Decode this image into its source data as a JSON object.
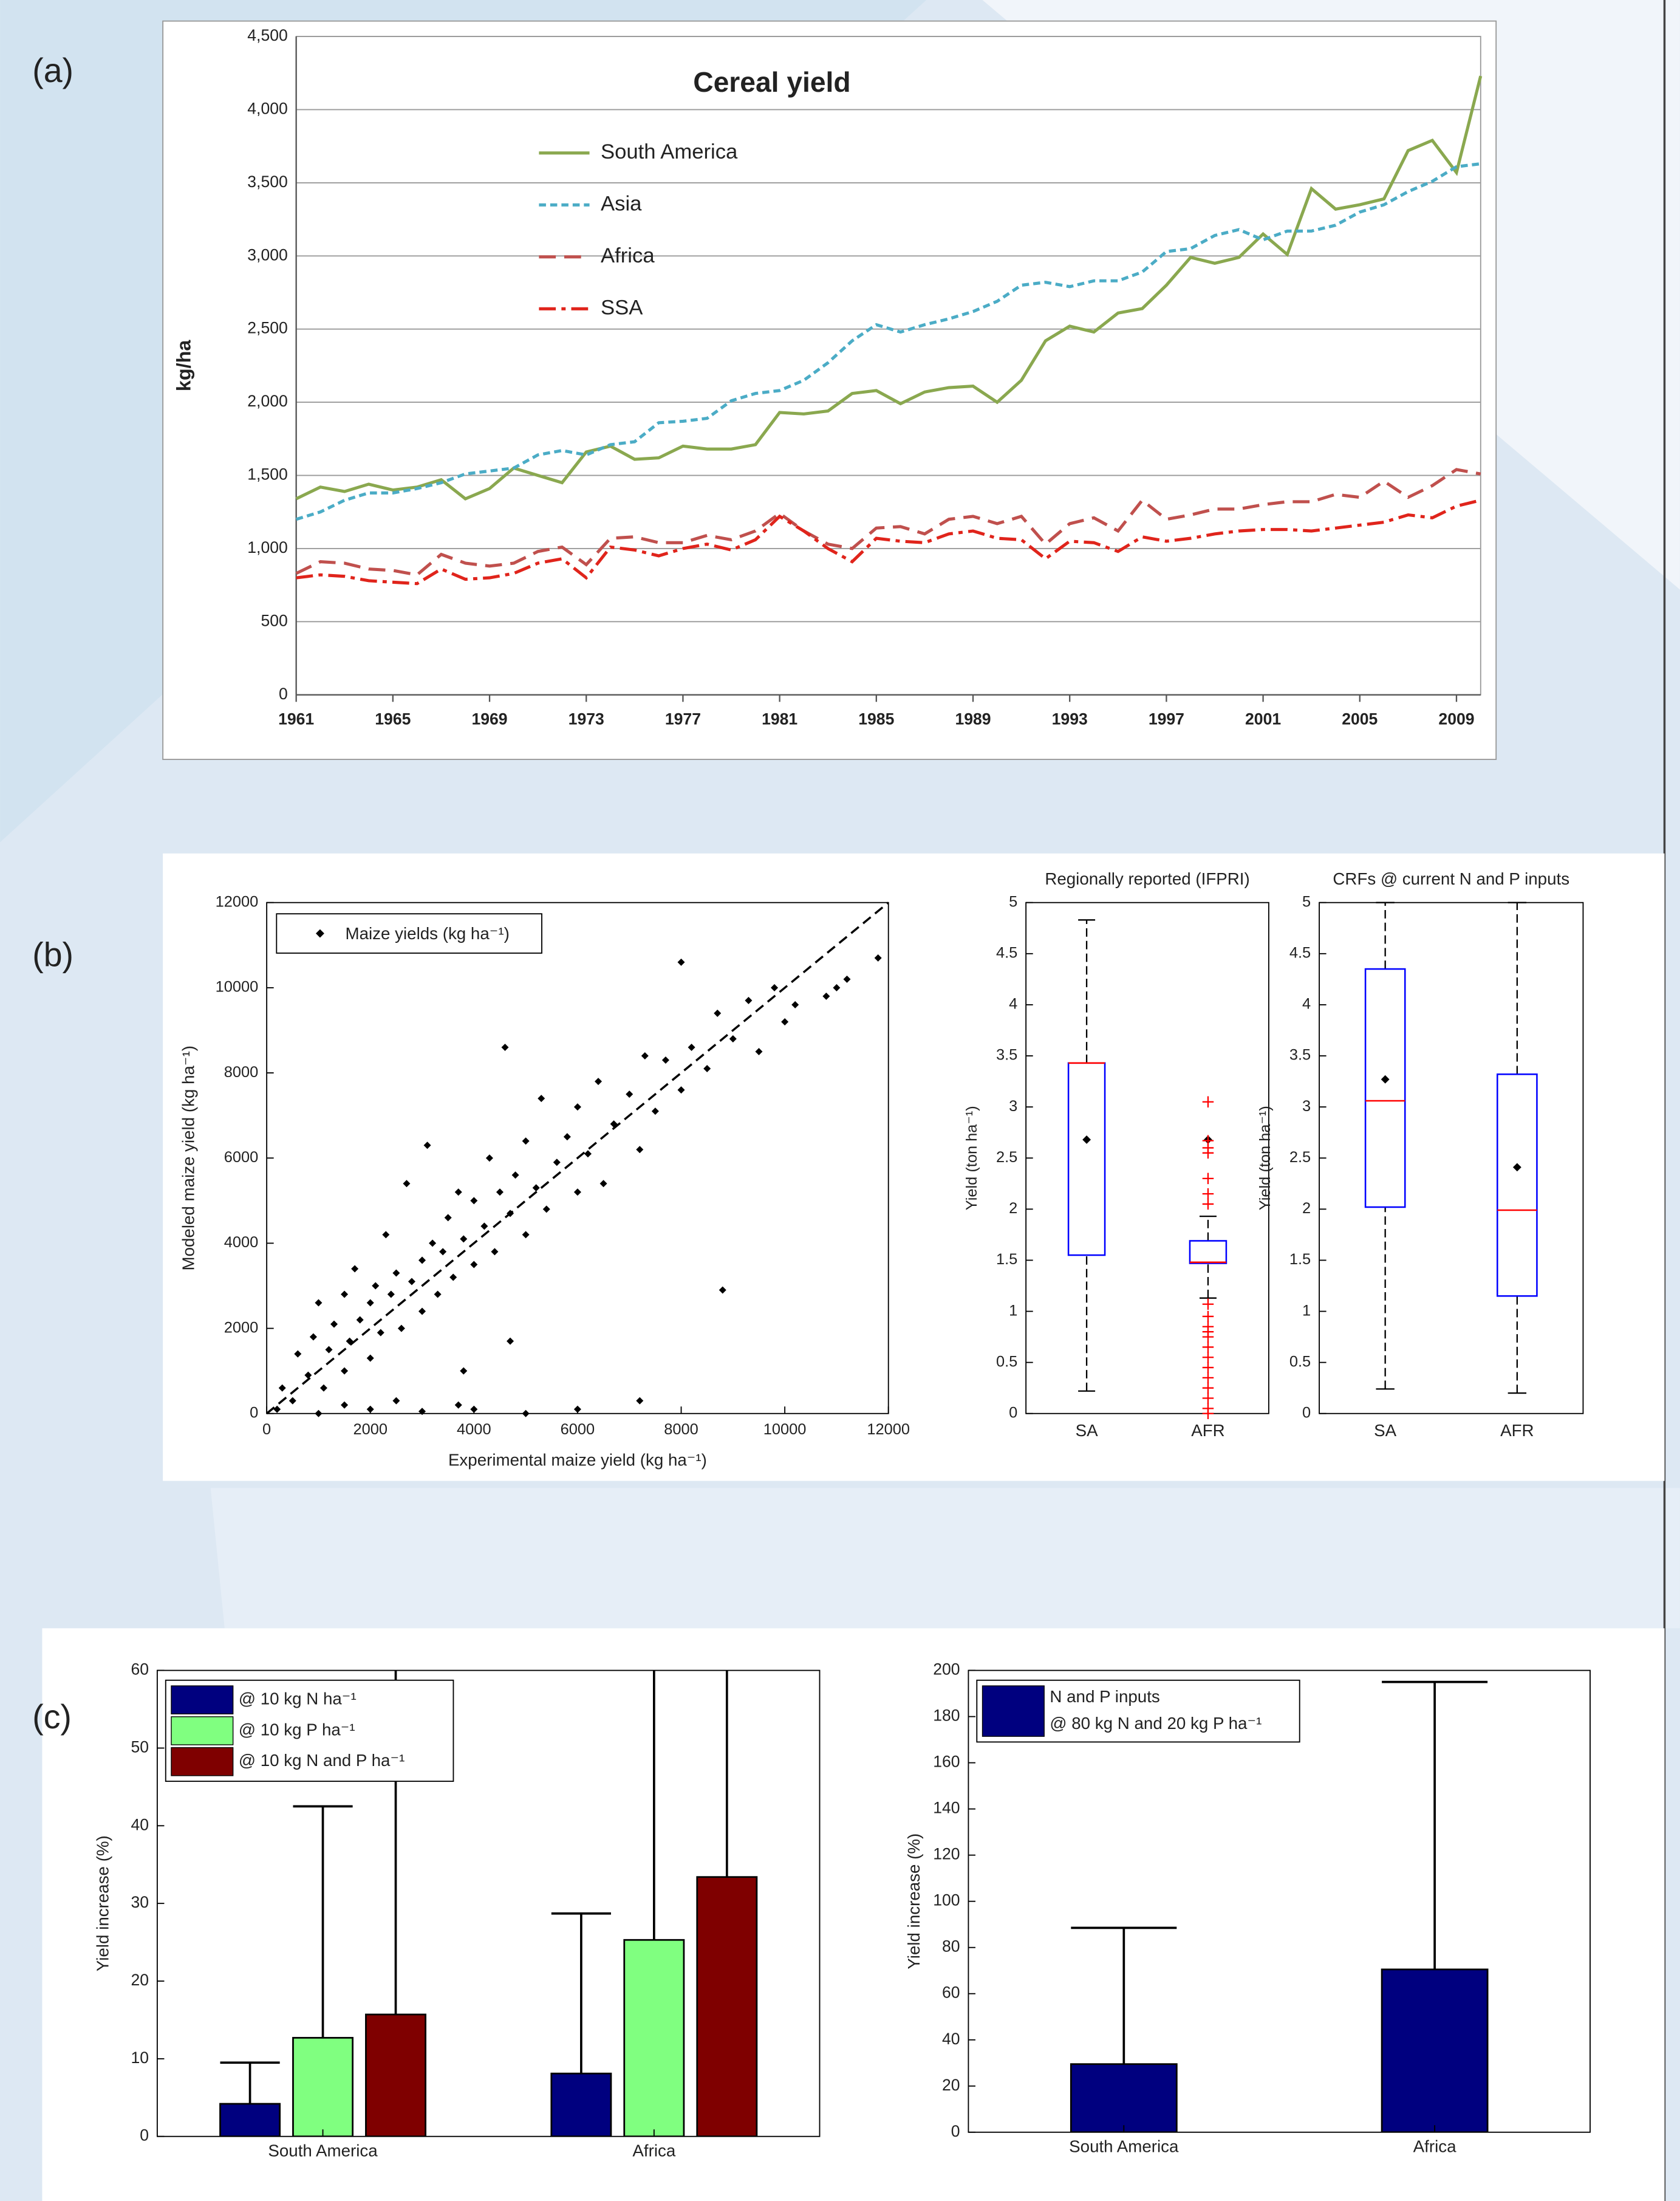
{
  "chart_data": [
    {
      "type": "line",
      "panel_label": "(a)",
      "title": "Cereal yield",
      "y_label": "kg/ha",
      "legend": "upper left",
      "grid": true,
      "x": [
        1961,
        1962,
        1963,
        1964,
        1965,
        1966,
        1967,
        1968,
        1969,
        1970,
        1971,
        1972,
        1973,
        1974,
        1975,
        1976,
        1977,
        1978,
        1979,
        1980,
        1981,
        1982,
        1983,
        1984,
        1985,
        1986,
        1987,
        1988,
        1989,
        1990,
        1991,
        1992,
        1993,
        1994,
        1995,
        1996,
        1997,
        1998,
        1999,
        2000,
        2001,
        2002,
        2003,
        2004,
        2005,
        2006,
        2007,
        2008,
        2009,
        2010
      ],
      "xlim": [
        1961,
        2010
      ],
      "xticks": [
        1961,
        1965,
        1969,
        1973,
        1977,
        1981,
        1985,
        1989,
        1993,
        1997,
        2001,
        2005,
        2009
      ],
      "ylim": [
        0,
        4500
      ],
      "yticks": [
        0,
        500,
        {
          "value": 1000,
          "label": "1,000"
        },
        {
          "value": 1500,
          "label": "1,500"
        },
        {
          "value": 2000,
          "label": "2,000"
        },
        {
          "value": 2500,
          "label": "2,500"
        },
        {
          "value": 3000,
          "label": "3,000"
        },
        {
          "value": 3500,
          "label": "3,500"
        },
        {
          "value": 4000,
          "label": "4,000"
        },
        {
          "value": 4500,
          "label": "4,500"
        }
      ],
      "series": [
        {
          "name": "South America",
          "color": "#8aa84f",
          "dash": "solid",
          "values": [
            1340,
            1420,
            1390,
            1440,
            1400,
            1420,
            1470,
            1340,
            1410,
            1550,
            1500,
            1450,
            1660,
            1700,
            1610,
            1620,
            1700,
            1680,
            1680,
            1710,
            1930,
            1920,
            1940,
            2060,
            2080,
            1990,
            2070,
            2100,
            2110,
            2000,
            2150,
            2420,
            2520,
            2480,
            2610,
            2640,
            2800,
            2990,
            2950,
            2990,
            3150,
            3010,
            3460,
            3320,
            3350,
            3390,
            3720,
            3790,
            3570,
            4230
          ]
        },
        {
          "name": "Asia",
          "color": "#4bacc6",
          "dash": "dashed",
          "values": [
            1200,
            1250,
            1330,
            1380,
            1380,
            1410,
            1450,
            1510,
            1530,
            1550,
            1640,
            1670,
            1640,
            1710,
            1730,
            1860,
            1870,
            1890,
            2010,
            2060,
            2080,
            2150,
            2270,
            2420,
            2530,
            2480,
            2530,
            2570,
            2620,
            2690,
            2800,
            2820,
            2790,
            2830,
            2830,
            2890,
            3030,
            3050,
            3140,
            3180,
            3110,
            3170,
            3170,
            3210,
            3300,
            3350,
            3440,
            3510,
            3610,
            3630
          ]
        },
        {
          "name": "Africa",
          "color": "#c0504d",
          "dash": "longdash",
          "values": [
            830,
            910,
            900,
            860,
            850,
            820,
            960,
            900,
            880,
            900,
            980,
            1010,
            890,
            1070,
            1080,
            1040,
            1040,
            1090,
            1060,
            1120,
            1240,
            1120,
            1030,
            1000,
            1140,
            1150,
            1100,
            1200,
            1220,
            1170,
            1220,
            1030,
            1170,
            1210,
            1120,
            1330,
            1200,
            1230,
            1270,
            1270,
            1300,
            1320,
            1320,
            1370,
            1350,
            1460,
            1350,
            1430,
            1540,
            1510
          ]
        },
        {
          "name": "SSA",
          "color": "#e0241b",
          "dash": "dashdot",
          "values": [
            800,
            820,
            810,
            780,
            770,
            760,
            860,
            790,
            800,
            830,
            900,
            930,
            800,
            1010,
            990,
            950,
            1000,
            1030,
            990,
            1060,
            1220,
            1120,
            1000,
            910,
            1070,
            1050,
            1040,
            1100,
            1120,
            1070,
            1060,
            930,
            1050,
            1040,
            980,
            1080,
            1050,
            1070,
            1100,
            1120,
            1130,
            1130,
            1120,
            1140,
            1160,
            1180,
            1230,
            1210,
            1290,
            1330
          ]
        }
      ]
    },
    {
      "type": "scatter",
      "panel_label": "(b)",
      "x_label": "Experimental maize yield (kg ha⁻¹)",
      "y_label": "Modeled maize yield (kg ha⁻¹)",
      "legend": "upper left",
      "grid": false,
      "xlim": [
        0,
        12000
      ],
      "xticks": [
        0,
        2000,
        4000,
        6000,
        8000,
        10000,
        12000
      ],
      "ylim": [
        0,
        12000
      ],
      "yticks": [
        0,
        2000,
        4000,
        6000,
        8000,
        10000,
        12000
      ],
      "series": [
        {
          "name": "Maize yields (kg ha⁻¹)",
          "color": "#000000",
          "x": [
            200,
            300,
            500,
            600,
            800,
            900,
            1000,
            1100,
            1200,
            1300,
            1500,
            1500,
            1600,
            1700,
            1800,
            2000,
            2000,
            2100,
            2200,
            2300,
            2400,
            2500,
            2600,
            2700,
            2800,
            3000,
            3000,
            3100,
            3200,
            3300,
            3400,
            3500,
            3600,
            3700,
            3800,
            4000,
            4000,
            4200,
            4300,
            4400,
            4500,
            4600,
            4700,
            4800,
            5000,
            5000,
            5200,
            5300,
            5400,
            5600,
            5800,
            6000,
            6000,
            6200,
            6400,
            6500,
            6700,
            7000,
            7200,
            7300,
            7500,
            7700,
            8000,
            8000,
            8200,
            8500,
            8700,
            8800,
            9000,
            9300,
            9500,
            9800,
            10000,
            10200,
            10800,
            11000,
            11200,
            11800,
            7200,
            5000,
            4000,
            3000,
            2000,
            6000,
            3800,
            3700,
            1500,
            1000,
            2500,
            4700
          ],
          "y": [
            100,
            600,
            300,
            1400,
            900,
            1800,
            2600,
            600,
            1500,
            2100,
            1000,
            2800,
            1700,
            3400,
            2200,
            1300,
            2600,
            3000,
            1900,
            4200,
            2800,
            3300,
            2000,
            5400,
            3100,
            3600,
            2400,
            6300,
            4000,
            2800,
            3800,
            4600,
            3200,
            5200,
            4100,
            3500,
            5000,
            4400,
            6000,
            3800,
            5200,
            8600,
            4700,
            5600,
            4200,
            6400,
            5300,
            7400,
            4800,
            5900,
            6500,
            5200,
            7200,
            6100,
            7800,
            5400,
            6800,
            7500,
            6200,
            8400,
            7100,
            8300,
            7600,
            10600,
            8600,
            8100,
            9400,
            2900,
            8800,
            9700,
            8500,
            10000,
            9200,
            9600,
            9800,
            10000,
            10200,
            10700,
            300,
            0,
            100,
            50,
            100,
            100,
            1000,
            200,
            200,
            0,
            300,
            1700
          ]
        }
      ]
    },
    {
      "type": "box",
      "title": "Regionally reported (IFPRI)",
      "y_label": "Yield (ton ha⁻¹)",
      "categories": [
        "SA",
        "AFR"
      ],
      "ylim": [
        0,
        5
      ],
      "yticks": [
        0,
        0.5,
        1,
        1.5,
        2,
        2.5,
        3,
        3.5,
        4,
        4.5,
        5
      ],
      "boxes": [
        {
          "whisker_low": 0.22,
          "q1": 1.55,
          "median": 3.43,
          "q3": 3.43,
          "whisker_high": 4.83,
          "mean": 2.68,
          "outliers": []
        },
        {
          "whisker_low": 1.13,
          "q1": 1.47,
          "median": 1.48,
          "q3": 1.69,
          "whisker_high": 1.93,
          "mean": 2.68,
          "outliers": [
            3.05,
            2.67,
            2.6,
            2.55,
            2.3,
            2.15,
            2.05,
            1.07,
            0.95,
            0.85,
            0.8,
            0.75,
            0.65,
            0.55,
            0.45,
            0.35,
            0.25,
            0.15,
            0.05,
            0
          ]
        }
      ]
    },
    {
      "type": "box",
      "title": "CRFs @ current N and P inputs",
      "y_label": "Yield (ton ha⁻¹)",
      "categories": [
        "SA",
        "AFR"
      ],
      "ylim": [
        0,
        5
      ],
      "yticks": [
        0,
        0.5,
        1,
        1.5,
        2,
        2.5,
        3,
        3.5,
        4,
        4.5,
        5
      ],
      "boxes": [
        {
          "whisker_low": 0.24,
          "q1": 2.02,
          "median": 3.06,
          "q3": 4.35,
          "whisker_high": 5,
          "mean": 3.27,
          "outliers": []
        },
        {
          "whisker_low": 0.2,
          "q1": 1.15,
          "median": 1.99,
          "q3": 3.32,
          "whisker_high": 5,
          "mean": 2.41,
          "outliers": []
        }
      ]
    },
    {
      "type": "bar",
      "panel_label": "(c)",
      "y_label": "Yield increase (%)",
      "categories": [
        "South America",
        "Africa"
      ],
      "legend": "upper left",
      "ylim": [
        0,
        60
      ],
      "yticks": [
        0,
        10,
        20,
        30,
        40,
        50,
        60
      ],
      "series": [
        {
          "name": "@ 10 kg N ha⁻¹",
          "color": "#00007f",
          "values": [
            4.2,
            8.1
          ],
          "errors": [
            5.3,
            20.6
          ]
        },
        {
          "name": "@ 10 kg P ha⁻¹",
          "color": "#80ff80",
          "values": [
            12.7,
            25.3
          ],
          "errors": [
            29.8,
            45
          ]
        },
        {
          "name": "@ 10 kg N and P ha⁻¹",
          "color": "#7f0000",
          "values": [
            15.7,
            33.4
          ],
          "errors": [
            50,
            40
          ]
        }
      ]
    },
    {
      "type": "bar",
      "y_label": "Yield increase (%)",
      "categories": [
        "South America",
        "Africa"
      ],
      "legend": "upper left",
      "ylim": [
        0,
        200
      ],
      "yticks": [
        0,
        20,
        40,
        60,
        80,
        100,
        120,
        140,
        160,
        180,
        200
      ],
      "series": [
        {
          "name_lines": [
            "N and P inputs",
            "@ 80 kg N and 20 kg P ha⁻¹"
          ],
          "color": "#00007f",
          "values": [
            29.5,
            70.5
          ],
          "errors": [
            59,
            124.5
          ]
        }
      ]
    }
  ]
}
